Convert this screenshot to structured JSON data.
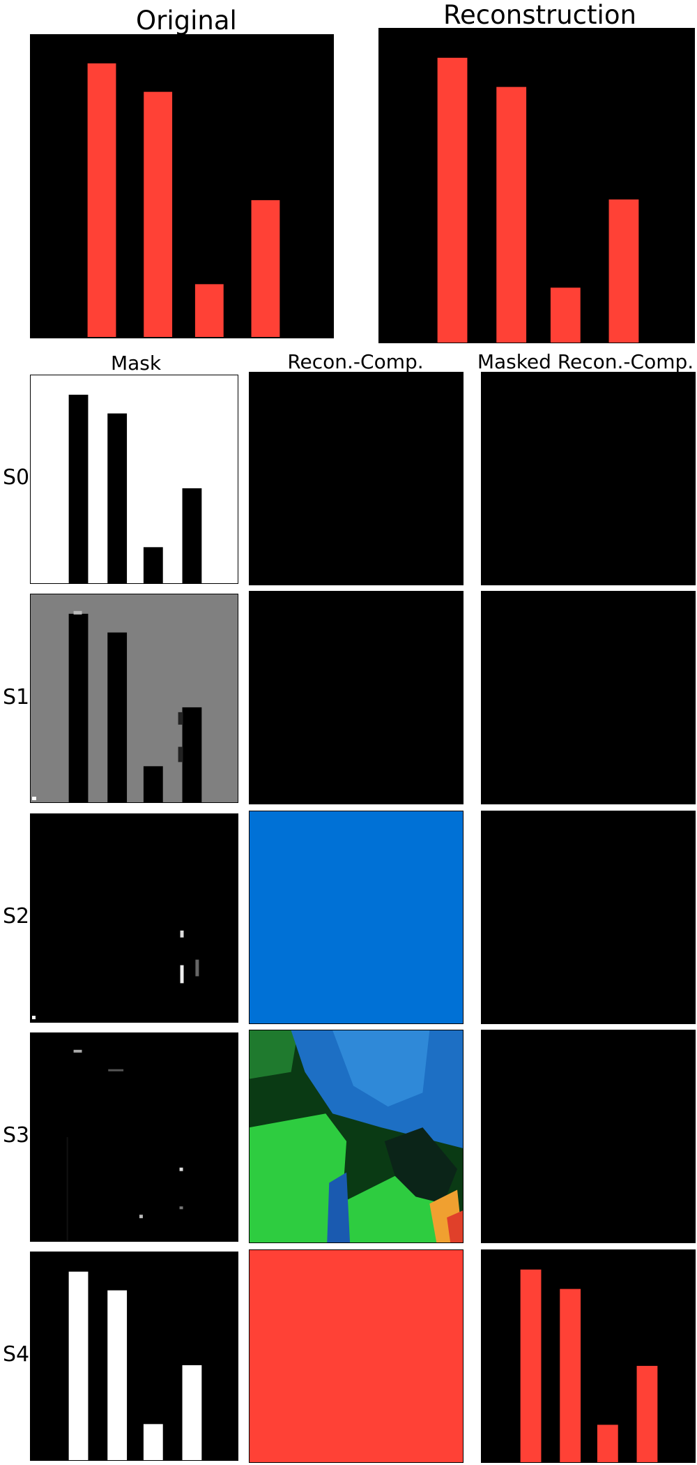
{
  "titles": {
    "original": "Original",
    "reconstruction": "Reconstruction",
    "mask": "Mask",
    "recon_comp": "Recon.-Comp.",
    "masked_recon_comp": "Masked Recon.-Comp."
  },
  "slots": [
    "S0",
    "S1",
    "S2",
    "S3",
    "S4"
  ],
  "colors": {
    "bar_red": "#ff4136",
    "background_black": "#000000",
    "mask_white": "#ffffff",
    "mask_gray": "#808080",
    "recon_blue": "#0071d6",
    "recon_green": "#2ecc40"
  },
  "bars": {
    "relative_heights": [
      0.91,
      0.81,
      0.17,
      0.45
    ]
  }
}
